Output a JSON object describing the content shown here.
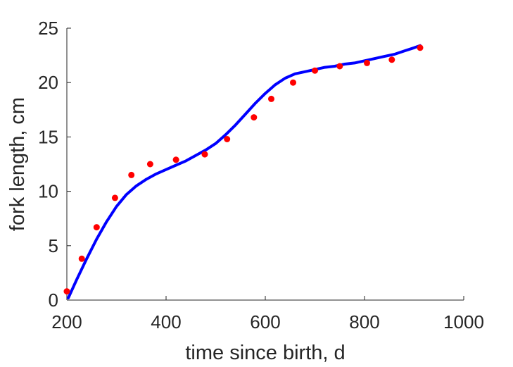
{
  "chart_data": {
    "type": "line",
    "title": "",
    "xlabel": "time since birth, d",
    "ylabel": "fork length, cm",
    "xlim": [
      200,
      1000
    ],
    "ylim": [
      0,
      25
    ],
    "xticks": [
      "200",
      "400",
      "600",
      "800",
      "1000"
    ],
    "yticks": [
      "0",
      "5",
      "10",
      "15",
      "20",
      "25"
    ],
    "grid": false,
    "legend": "none",
    "series": [
      {
        "kind": "line",
        "color": "#0000ff",
        "x": [
          203,
          220,
          240,
          260,
          280,
          300,
          320,
          340,
          360,
          380,
          400,
          420,
          440,
          460,
          480,
          500,
          520,
          540,
          560,
          580,
          600,
          620,
          640,
          660,
          680,
          700,
          720,
          740,
          760,
          780,
          800,
          820,
          840,
          860,
          880,
          900,
          912
        ],
        "y": [
          0.2,
          1.9,
          3.8,
          5.6,
          7.2,
          8.6,
          9.7,
          10.5,
          11.1,
          11.6,
          12.0,
          12.4,
          12.8,
          13.3,
          13.8,
          14.4,
          15.2,
          16.1,
          17.1,
          18.1,
          19.0,
          19.8,
          20.4,
          20.8,
          21.0,
          21.2,
          21.4,
          21.5,
          21.7,
          21.8,
          22.0,
          22.2,
          22.4,
          22.6,
          22.9,
          23.2,
          23.4
        ]
      },
      {
        "kind": "scatter",
        "color": "#ff0000",
        "x": [
          200,
          230,
          260,
          297,
          330,
          368,
          420,
          478,
          523,
          577,
          612,
          656,
          700,
          750,
          805,
          855,
          912
        ],
        "y": [
          0.8,
          3.8,
          6.7,
          9.4,
          11.5,
          12.5,
          12.9,
          13.4,
          14.8,
          16.8,
          18.5,
          20.0,
          21.1,
          21.5,
          21.8,
          22.1,
          23.2
        ]
      }
    ]
  }
}
